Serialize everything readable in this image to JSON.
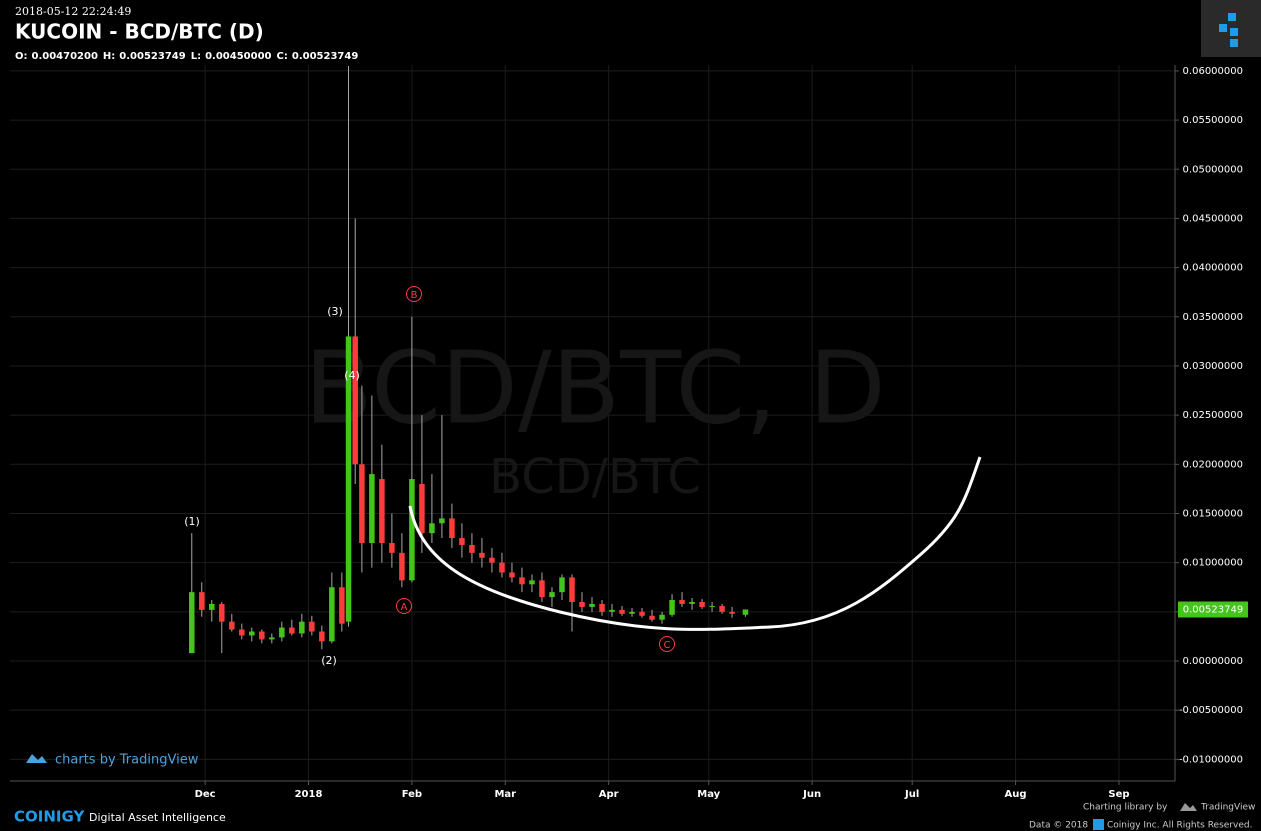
{
  "header": {
    "timestamp": "2018-05-12 22:24:49",
    "title": "KUCOIN - BCD/BTC (D)",
    "ohlc": [
      {
        "key": "O:",
        "text": "0.00470200"
      },
      {
        "key": "H:",
        "text": "0.00523749"
      },
      {
        "key": "L:",
        "text": "0.00450000"
      },
      {
        "key": "C:",
        "text": "0.00523749"
      }
    ]
  },
  "chart_data": {
    "type": "candlestick",
    "watermark": "BCD/BTC, D",
    "watermark_sub": "BCD/BTC",
    "up_color": "#44c51c",
    "down_color": "#ff3b3b",
    "grid": true,
    "xlim": [
      -58.5,
      290.8
    ],
    "xticks": [
      {
        "value": 0,
        "label": "Dec"
      },
      {
        "value": 31,
        "label": "2018"
      },
      {
        "value": 62,
        "label": "Feb"
      },
      {
        "value": 90,
        "label": "Mar"
      },
      {
        "value": 121,
        "label": "Apr"
      },
      {
        "value": 151,
        "label": "May"
      },
      {
        "value": 182,
        "label": "Jun"
      },
      {
        "value": 212,
        "label": "Jul"
      },
      {
        "value": 243,
        "label": "Aug"
      },
      {
        "value": 274,
        "label": "Sep"
      }
    ],
    "ylim": [
      -0.0122,
      0.0606
    ],
    "yticks": [
      {
        "value": 0.06,
        "label": "0.06000000"
      },
      {
        "value": 0.055,
        "label": "0.05500000"
      },
      {
        "value": 0.05,
        "label": "0.05000000"
      },
      {
        "value": 0.045,
        "label": "0.04500000"
      },
      {
        "value": 0.04,
        "label": "0.04000000"
      },
      {
        "value": 0.035,
        "label": "0.03500000"
      },
      {
        "value": 0.03,
        "label": "0.03000000"
      },
      {
        "value": 0.025,
        "label": "0.02500000"
      },
      {
        "value": 0.02,
        "label": "0.02000000"
      },
      {
        "value": 0.015,
        "label": "0.01500000"
      },
      {
        "value": 0.01,
        "label": "0.01000000"
      },
      {
        "value": 0.005,
        "label": "0.00500000"
      },
      {
        "value": 0,
        "label": "0.00000000"
      },
      {
        "value": -0.005,
        "label": "-0.00500000"
      },
      {
        "value": -0.01,
        "label": "-0.01000000"
      }
    ],
    "last_price": {
      "value": 0.00523749,
      "label": "0.00523749"
    },
    "x": [
      -4,
      -1,
      2,
      5,
      8,
      11,
      14,
      17,
      20,
      23,
      26,
      29,
      32,
      35,
      38,
      41,
      43,
      45,
      47,
      50,
      53,
      56,
      59,
      62,
      65,
      68,
      71,
      74,
      77,
      80,
      83,
      86,
      89,
      92,
      95,
      98,
      101,
      104,
      107,
      110,
      113,
      116,
      119,
      122,
      125,
      128,
      131,
      134,
      137,
      140,
      143,
      146,
      149,
      152,
      155,
      158,
      162
    ],
    "open": [
      0.0008,
      0.007,
      0.0052,
      0.0058,
      0.004,
      0.0032,
      0.0026,
      0.003,
      0.0022,
      0.0024,
      0.0034,
      0.0028,
      0.004,
      0.003,
      0.002,
      0.0075,
      0.004,
      0.033,
      0.02,
      0.012,
      0.0185,
      0.012,
      0.011,
      0.0082,
      0.018,
      0.013,
      0.014,
      0.0145,
      0.0125,
      0.0118,
      0.011,
      0.0105,
      0.01,
      0.009,
      0.0085,
      0.0078,
      0.0082,
      0.0065,
      0.007,
      0.0085,
      0.006,
      0.0055,
      0.0058,
      0.005,
      0.0052,
      0.0048,
      0.005,
      0.0046,
      0.0042,
      0.0047,
      0.0062,
      0.0058,
      0.006,
      0.0055,
      0.0056,
      0.005,
      0.004702
    ],
    "high": [
      0.013,
      0.008,
      0.0062,
      0.006,
      0.0048,
      0.0038,
      0.0034,
      0.0032,
      0.0028,
      0.004,
      0.0042,
      0.0048,
      0.0046,
      0.0036,
      0.009,
      0.009,
      0.0605,
      0.045,
      0.028,
      0.027,
      0.022,
      0.015,
      0.013,
      0.035,
      0.025,
      0.019,
      0.025,
      0.016,
      0.014,
      0.013,
      0.0125,
      0.0115,
      0.011,
      0.01,
      0.0095,
      0.0088,
      0.009,
      0.0075,
      0.0088,
      0.0088,
      0.007,
      0.0065,
      0.0062,
      0.0058,
      0.0056,
      0.0054,
      0.0054,
      0.0052,
      0.005,
      0.0068,
      0.007,
      0.0064,
      0.0063,
      0.006,
      0.0058,
      0.0055,
      0.00523749
    ],
    "low": [
      0.0008,
      0.0045,
      0.004,
      0.0008,
      0.003,
      0.0022,
      0.002,
      0.0018,
      0.0018,
      0.002,
      0.0026,
      0.0024,
      0.0026,
      0.0012,
      0.0018,
      0.003,
      0.0035,
      0.018,
      0.009,
      0.0095,
      0.01,
      0.0095,
      0.0075,
      0.008,
      0.011,
      0.012,
      0.0125,
      0.0115,
      0.0105,
      0.01,
      0.0095,
      0.009,
      0.0085,
      0.008,
      0.007,
      0.007,
      0.006,
      0.0055,
      0.0062,
      0.003,
      0.005,
      0.005,
      0.0046,
      0.0045,
      0.0046,
      0.0045,
      0.0044,
      0.004,
      0.0038,
      0.0045,
      0.0055,
      0.0052,
      0.0053,
      0.005,
      0.0048,
      0.0044,
      0.0045
    ],
    "close": [
      0.007,
      0.0052,
      0.0058,
      0.004,
      0.0032,
      0.0026,
      0.003,
      0.0022,
      0.0024,
      0.0034,
      0.0028,
      0.004,
      0.003,
      0.002,
      0.0075,
      0.0038,
      0.033,
      0.02,
      0.012,
      0.019,
      0.012,
      0.011,
      0.0082,
      0.0185,
      0.013,
      0.014,
      0.0145,
      0.0125,
      0.0118,
      0.011,
      0.0105,
      0.01,
      0.009,
      0.0085,
      0.0078,
      0.0082,
      0.0065,
      0.007,
      0.0085,
      0.006,
      0.0055,
      0.0058,
      0.005,
      0.0052,
      0.0048,
      0.005,
      0.0046,
      0.0042,
      0.0047,
      0.0062,
      0.0058,
      0.006,
      0.0055,
      0.0056,
      0.005,
      0.0048,
      0.00523749
    ],
    "annotations": [
      "(1)",
      "(2)",
      "(3)",
      "(4)",
      "A",
      "B",
      "C"
    ]
  },
  "footer": {
    "tv_link": "charts by TradingView",
    "brand": "COINIGY",
    "tagline": "Digital Asset Intelligence",
    "library": "Charting library by",
    "library_name": "TradingView",
    "data_credit": "Data © 2018",
    "rights": "Coinigy Inc. All Rights Reserved."
  }
}
